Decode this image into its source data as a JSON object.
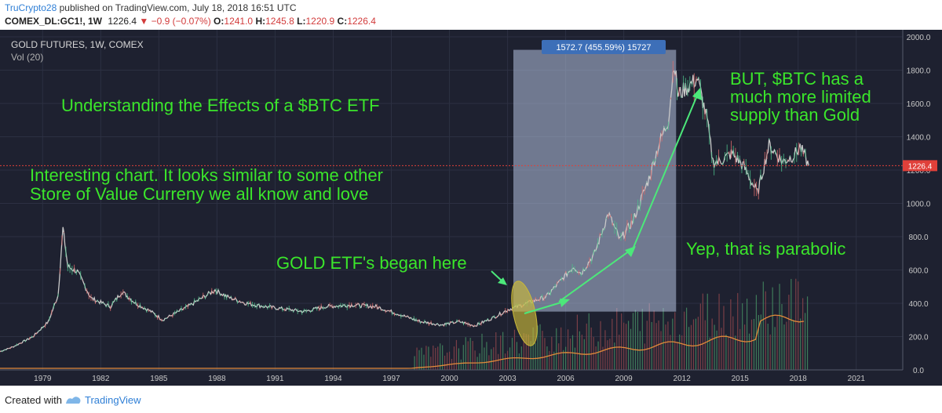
{
  "header": {
    "author": "TruCrypto28",
    "published": "published on TradingView.com, July 18, 2018 16:51 UTC",
    "symbol": "COMEX_DL:GC1!, 1W",
    "last": "1226.4",
    "change": "−0.9 (−0.07%)",
    "o_label": "O:",
    "o_value": "1241.0",
    "h_label": "H:",
    "h_value": "1245.8",
    "l_label": "L:",
    "l_value": "1220.9",
    "c_label": "C:",
    "c_value": "1226.4",
    "down_color": "#d23b3b"
  },
  "chart_data": {
    "type": "line",
    "instrument": "GOLD FUTURES, 1W, COMEX",
    "volume_label": "Vol (20)",
    "x_ticks": [
      "1979",
      "1982",
      "1985",
      "1988",
      "1991",
      "1994",
      "1997",
      "2000",
      "2003",
      "2006",
      "2009",
      "2012",
      "2015",
      "2018",
      "2021"
    ],
    "y_ticks": [
      0,
      200,
      400,
      600,
      800,
      1000,
      1200,
      1400,
      1600,
      1800,
      2000
    ],
    "y_tick_labels": [
      "0.0",
      "200.0",
      "400.0",
      "600.0",
      "800.0",
      "1000.0",
      "1200.0",
      "1400.0",
      "1600.0",
      "1800.0",
      "2000.0"
    ],
    "ylim": [
      0,
      2000
    ],
    "xlim": [
      1976.8,
      2023.4
    ],
    "price_series": {
      "name": "GOLD FUTURES",
      "x": [
        1976.8,
        1977.5,
        1978.5,
        1979.3,
        1979.8,
        1980.05,
        1980.3,
        1980.8,
        1981.5,
        1982.5,
        1983.1,
        1983.8,
        1984.6,
        1985.2,
        1986.5,
        1987.9,
        1988.5,
        1989.5,
        1990.5,
        1992.5,
        1993.6,
        1995,
        1996.2,
        1997.5,
        1998.5,
        1999.6,
        2000.5,
        2001.3,
        2002.2,
        2003,
        2004,
        2005,
        2006.4,
        2006.8,
        2007.5,
        2008.2,
        2008.8,
        2009.5,
        2010.3,
        2010.8,
        2011.3,
        2011.6,
        2011.8,
        2012.3,
        2012.8,
        2013.3,
        2013.6,
        2013.9,
        2014.6,
        2015.2,
        2015.9,
        2016.5,
        2017.2,
        2017.8,
        2018.1,
        2018.55
      ],
      "y": [
        110,
        140,
        200,
        290,
        450,
        850,
        620,
        590,
        430,
        380,
        470,
        400,
        350,
        300,
        380,
        480,
        440,
        400,
        380,
        350,
        380,
        390,
        380,
        330,
        290,
        270,
        290,
        265,
        310,
        360,
        400,
        440,
        620,
        580,
        700,
        940,
        780,
        900,
        1150,
        1350,
        1500,
        1850,
        1650,
        1700,
        1750,
        1500,
        1250,
        1250,
        1300,
        1220,
        1060,
        1350,
        1250,
        1290,
        1340,
        1226.4
      ]
    },
    "volume_series": {
      "name": "Vol (20)",
      "note": "volume histogram shown from about 1998 onward, unscaled"
    },
    "last_price": 1226.4,
    "last_price_label": "1226.4",
    "measure_box": {
      "x_start": 2003.3,
      "x_end": 2011.7,
      "y_low": 350,
      "y_high": 1922,
      "label": "1572.7 (455.59%) 15727"
    },
    "annotations": [
      "Understanding the Effects of a $BTC ETF",
      "Interesting chart. It looks similar to some other",
      "Store of Value Curreny we all know and love",
      "GOLD ETF's began here",
      "BUT, $BTC has a",
      "much more limited",
      "supply than Gold",
      "Yep, that is parabolic"
    ],
    "colors": {
      "background": "#1e2130",
      "grid": "#2c3042",
      "price": "#c9c9c9",
      "annotation_text": "#3be62b",
      "arrow": "#4ce87a",
      "measure_box": "#b4c3e0",
      "last_price_line": "#e0403a",
      "ellipse": "#c9b93a"
    }
  },
  "footer": {
    "created": "Created with",
    "brand": "TradingView"
  }
}
